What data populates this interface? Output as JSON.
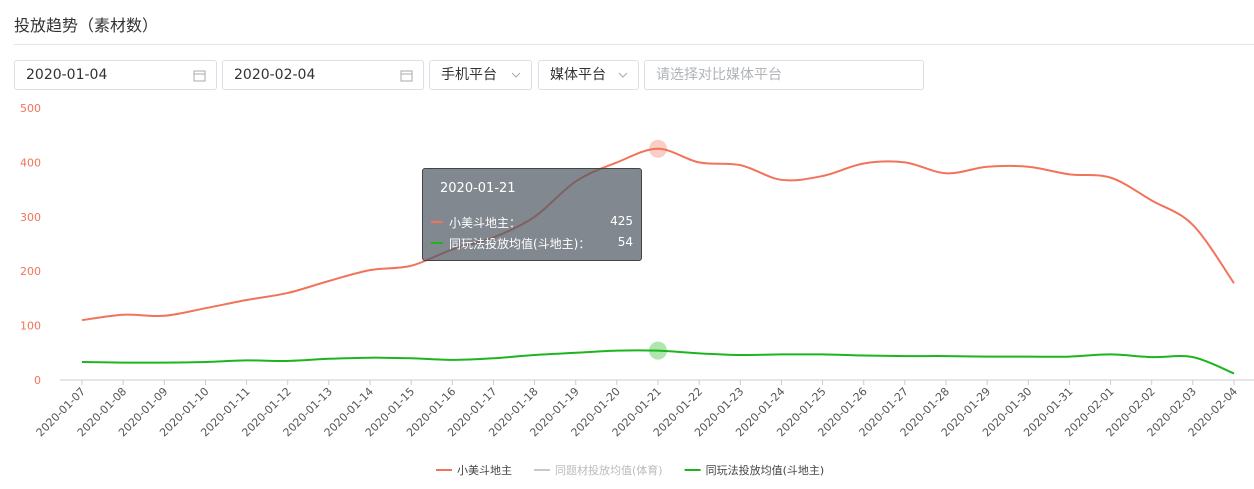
{
  "header": {
    "title": "投放趋势（素材数）"
  },
  "filters": {
    "start_date": "2020-01-04",
    "end_date": "2020-02-04",
    "select_1": "手机平台",
    "select_2": "媒体平台",
    "compare_placeholder": "请选择对比媒体平台"
  },
  "tooltip": {
    "rows": [
      "小美斗地主：",
      "同玩法投放均值(斗地主)："
    ]
  },
  "chart_data": {
    "type": "line",
    "categories": [
      "2020-01-07",
      "2020-01-08",
      "2020-01-09",
      "2020-01-10",
      "2020-01-11",
      "2020-01-12",
      "2020-01-13",
      "2020-01-14",
      "2020-01-15",
      "2020-01-16",
      "2020-01-17",
      "2020-01-18",
      "2020-01-19",
      "2020-01-20",
      "2020-01-21",
      "2020-01-22",
      "2020-01-23",
      "2020-01-24",
      "2020-01-25",
      "2020-01-26",
      "2020-01-27",
      "2020-01-28",
      "2020-01-29",
      "2020-01-30",
      "2020-01-31",
      "2020-02-01",
      "2020-02-02",
      "2020-02-03",
      "2020-02-04"
    ],
    "series": [
      {
        "name": "小美斗地主",
        "color": "#f2735a",
        "values": [
          110,
          120,
          118,
          132,
          147,
          160,
          182,
          202,
          210,
          240,
          262,
          300,
          365,
          400,
          425,
          400,
          395,
          368,
          375,
          398,
          400,
          380,
          392,
          392,
          378,
          372,
          330,
          285,
          178
        ]
      },
      {
        "name": "同题材投放均值(体育)",
        "color": "#c8c8c8",
        "values": [
          null,
          null,
          null,
          null,
          null,
          null,
          null,
          null,
          null,
          null,
          null,
          null,
          null,
          null,
          null,
          null,
          null,
          null,
          null,
          null,
          null,
          null,
          null,
          null,
          null,
          null,
          null,
          null,
          null
        ]
      },
      {
        "name": "同玩法投放均值(斗地主)",
        "color": "#1db51d",
        "values": [
          33,
          32,
          32,
          33,
          36,
          35,
          39,
          41,
          40,
          37,
          40,
          46,
          50,
          54,
          54,
          49,
          46,
          47,
          47,
          45,
          44,
          44,
          43,
          43,
          43,
          47,
          42,
          42,
          12
        ]
      }
    ],
    "ylim": [
      0,
      500
    ],
    "yticks": [
      0,
      100,
      200,
      300,
      400,
      500
    ],
    "ytick_color": "#f2735a",
    "highlight_index": 14
  }
}
